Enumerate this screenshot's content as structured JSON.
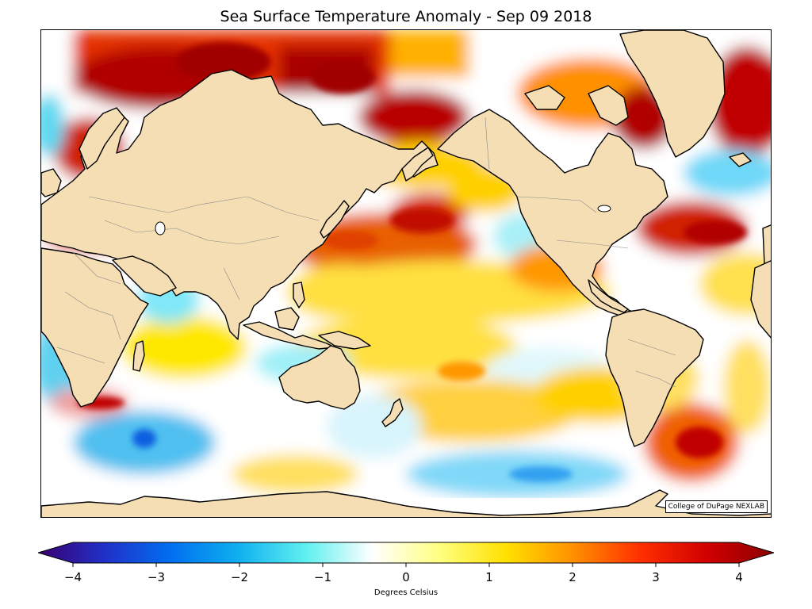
{
  "title": "Sea Surface Temperature Anomaly - Sep 09 2018",
  "credit": "College of DuPage NEXLAB",
  "colorbar": {
    "label": "Degrees Celsius",
    "min": -4,
    "max": 4,
    "ticks": [
      "−4",
      "−3",
      "−2",
      "−1",
      "0",
      "1",
      "2",
      "3",
      "4"
    ],
    "tick_values": [
      -4,
      -3,
      -2,
      -1,
      0,
      1,
      2,
      3,
      4
    ],
    "colormap": [
      "#3a0070",
      "#2030c8",
      "#0070f0",
      "#10b0f0",
      "#60f0f0",
      "#ffffff",
      "#ffff80",
      "#ffe000",
      "#ff9000",
      "#ff3000",
      "#d00000",
      "#8b0000"
    ]
  },
  "map": {
    "projection": "Mercator (Pacific-centered)",
    "land_color": "#f5deb3",
    "ocean_neutral_color": "#ffffff"
  }
}
